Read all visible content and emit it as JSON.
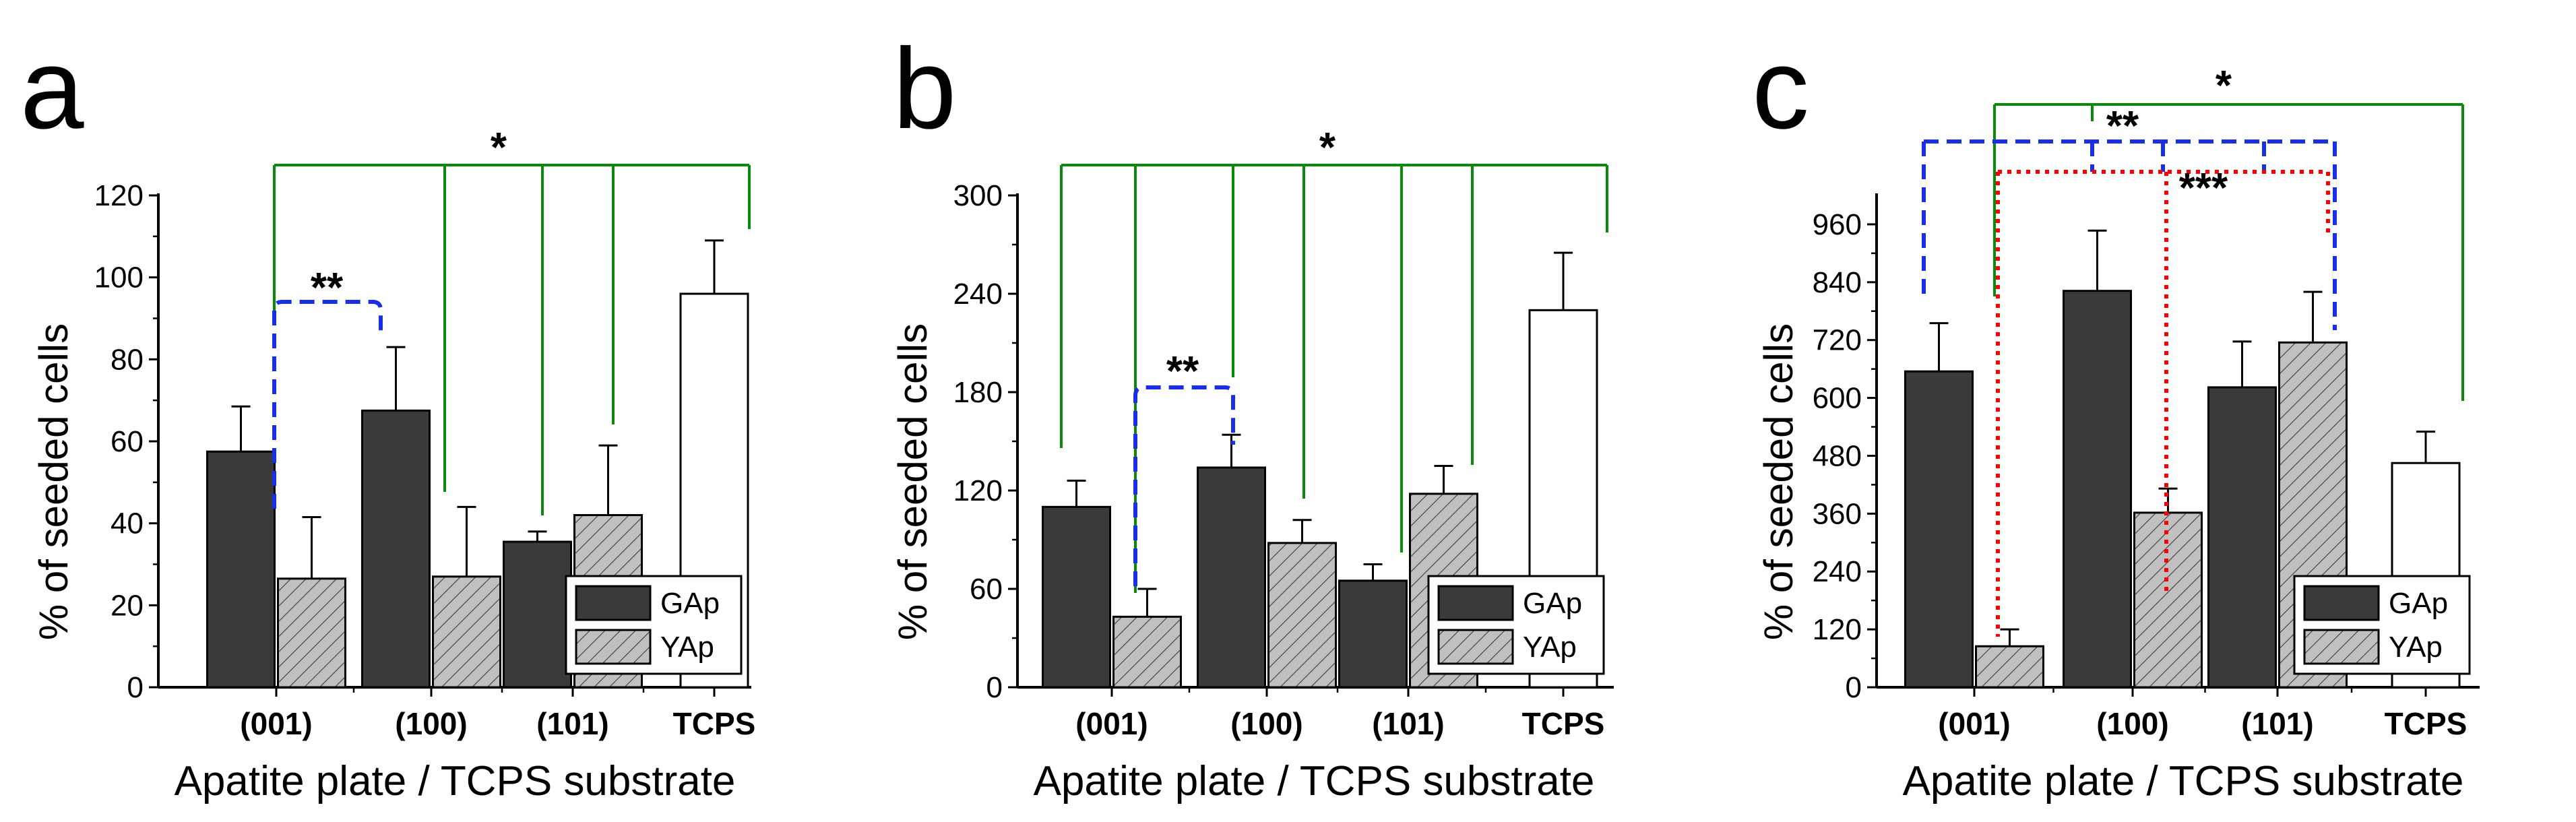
{
  "colors": {
    "gap": "#3a3a3a",
    "yap": "#c0c0c0",
    "tcps": "#ffffff",
    "green": "#0a8a0a",
    "blue": "#1a2ee6",
    "red": "#ff0000"
  },
  "chart_data": [
    {
      "panel": "a",
      "type": "bar",
      "ylabel": "% of seeded cells",
      "xlabel": "Apatite plate / TCPS substrate",
      "ylim": [
        0,
        120
      ],
      "yticks": [
        "0",
        "20",
        "40",
        "60",
        "80",
        "100",
        "120"
      ],
      "categories": [
        "(001)",
        "(100)",
        "(101)",
        "TCPS"
      ],
      "series": [
        {
          "name": "GAp",
          "values": [
            57.5,
            67.5,
            35.5,
            null
          ],
          "errors": [
            11,
            15.5,
            2.5,
            null
          ]
        },
        {
          "name": "YAp",
          "values": [
            26.5,
            27,
            42,
            null
          ],
          "errors": [
            15,
            17,
            17,
            null
          ]
        },
        {
          "name": "TCPS",
          "values": [
            null,
            null,
            null,
            96
          ],
          "errors": [
            null,
            null,
            null,
            13
          ]
        }
      ],
      "legend": [
        "GAp",
        "YAp"
      ],
      "legend_position": "bottom-right",
      "annotations": [
        {
          "label": "*",
          "color": "green",
          "style": "solid"
        },
        {
          "label": "**",
          "color": "blue",
          "style": "dashed"
        }
      ]
    },
    {
      "panel": "b",
      "type": "bar",
      "ylabel": "% of seeded cells",
      "xlabel": "Apatite plate / TCPS substrate",
      "ylim": [
        0,
        300
      ],
      "yticks": [
        "0",
        "60",
        "120",
        "180",
        "240",
        "300"
      ],
      "categories": [
        "(001)",
        "(100)",
        "(101)",
        "TCPS"
      ],
      "series": [
        {
          "name": "GAp",
          "values": [
            110,
            134,
            65,
            null
          ],
          "errors": [
            16,
            20,
            10,
            null
          ]
        },
        {
          "name": "YAp",
          "values": [
            43,
            88,
            118,
            null
          ],
          "errors": [
            17,
            14,
            17,
            null
          ]
        },
        {
          "name": "TCPS",
          "values": [
            null,
            null,
            null,
            230
          ],
          "errors": [
            null,
            null,
            null,
            35
          ]
        }
      ],
      "legend": [
        "GAp",
        "YAp"
      ],
      "legend_position": "bottom-right",
      "annotations": [
        {
          "label": "*",
          "color": "green",
          "style": "solid"
        },
        {
          "label": "**",
          "color": "blue",
          "style": "dashed"
        }
      ]
    },
    {
      "panel": "c",
      "type": "bar",
      "ylabel": "% of seeded cells",
      "xlabel": "Apatite plate / TCPS substrate",
      "ylim": [
        0,
        1020
      ],
      "yticks": [
        "0",
        "120",
        "240",
        "360",
        "480",
        "600",
        "720",
        "840",
        "960"
      ],
      "categories": [
        "(001)",
        "(100)",
        "(101)",
        "TCPS"
      ],
      "series": [
        {
          "name": "GAp",
          "values": [
            655,
            822,
            622,
            null
          ],
          "errors": [
            100,
            125,
            95,
            null
          ]
        },
        {
          "name": "YAp",
          "values": [
            85,
            362,
            715,
            null
          ],
          "errors": [
            35,
            50,
            105,
            null
          ]
        },
        {
          "name": "TCPS",
          "values": [
            null,
            null,
            null,
            465
          ],
          "errors": [
            null,
            null,
            null,
            65
          ]
        }
      ],
      "legend": [
        "GAp",
        "YAp"
      ],
      "legend_position": "bottom-right",
      "annotations": [
        {
          "label": "*",
          "color": "green",
          "style": "solid"
        },
        {
          "label": "**",
          "color": "blue",
          "style": "dashed"
        },
        {
          "label": "***",
          "color": "red",
          "style": "dotted"
        }
      ]
    }
  ]
}
